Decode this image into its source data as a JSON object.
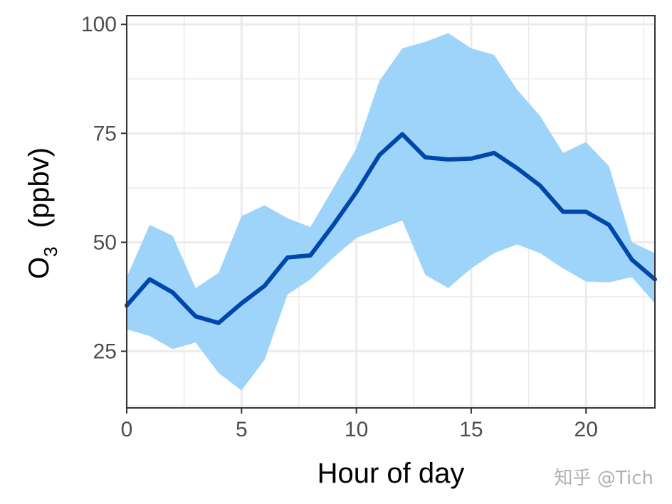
{
  "chart_data": {
    "type": "line",
    "title": "",
    "xlabel": "Hour of day",
    "ylabel": {
      "base": "O",
      "subscript": "3",
      "unit": "(ppbv)"
    },
    "xlim": [
      0,
      23
    ],
    "ylim": [
      12,
      102
    ],
    "x_ticks": [
      0,
      5,
      10,
      15,
      20
    ],
    "y_ticks": [
      25,
      50,
      75,
      100
    ],
    "grid": true,
    "legend": "none",
    "x": [
      0,
      1,
      2,
      3,
      4,
      5,
      6,
      7,
      8,
      9,
      10,
      11,
      12,
      13,
      14,
      15,
      16,
      17,
      18,
      19,
      20,
      21,
      22,
      23
    ],
    "series": [
      {
        "type": "line",
        "values": [
          35.5,
          41.5,
          38.5,
          33.0,
          31.5,
          36.0,
          40.0,
          46.5,
          47.0,
          54.0,
          61.5,
          70.0,
          74.8,
          69.5,
          69.0,
          69.2,
          70.5,
          67.0,
          63.0,
          57.0,
          57.0,
          54.0,
          46.0,
          41.5
        ],
        "color": "#0047ab"
      },
      {
        "type": "band",
        "lower": [
          30.0,
          28.5,
          25.5,
          27.0,
          20.0,
          16.0,
          23.0,
          38.0,
          41.5,
          46.5,
          51.0,
          53.0,
          55.0,
          42.5,
          39.5,
          44.0,
          47.5,
          49.5,
          47.5,
          44.0,
          41.0,
          40.8,
          42.0,
          36.0
        ],
        "upper": [
          42.0,
          54.0,
          51.5,
          39.5,
          43.0,
          56.0,
          58.5,
          55.5,
          53.5,
          62.5,
          71.5,
          87.0,
          94.5,
          96.0,
          98.0,
          94.5,
          93.0,
          85.0,
          79.0,
          70.5,
          73.0,
          67.5,
          50.0,
          47.5
        ],
        "color": "#9fd4fa"
      }
    ],
    "colors": {
      "line": "#0047ab",
      "band": "#9fd4fa",
      "grid": "#ebebeb",
      "frame": "#333333"
    }
  },
  "watermark": "知乎 @Tich"
}
